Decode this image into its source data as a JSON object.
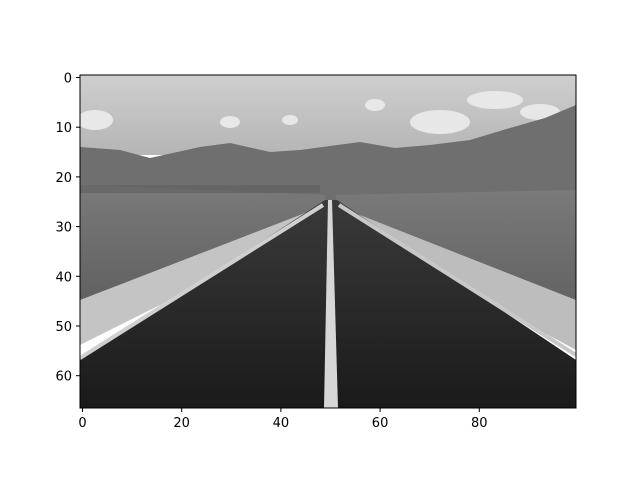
{
  "chart_data": {
    "type": "heatmap",
    "title": "",
    "xlabel": "",
    "ylabel": "",
    "colormap": "gray",
    "image_width": 100,
    "image_height": 67,
    "xlim": [
      -0.5,
      99.5
    ],
    "ylim": [
      66.5,
      -0.5
    ],
    "x_ticks": [
      0,
      20,
      40,
      60,
      80
    ],
    "y_ticks": [
      0,
      10,
      20,
      30,
      40,
      50,
      60
    ],
    "grid": false,
    "legend": "none",
    "colors": {
      "sky_light": "#d9d9d9",
      "clouds": "#f0f0f0",
      "mountains": "#6a6a6a",
      "desert_ground": "#8c8c8c",
      "road_shoulder": "#c8c8c8",
      "asphalt": "#2a2a2a",
      "center_line": "#d8d8d8"
    }
  }
}
